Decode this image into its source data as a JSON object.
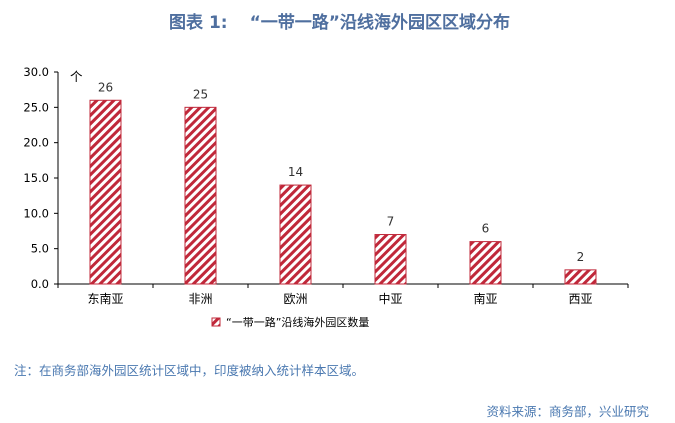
{
  "title": {
    "label": "图表 1:",
    "text": "“一带一路”沿线海外园区区域分布"
  },
  "note": "注：在商务部海外园区统计区域中，印度被纳入统计样本区域。",
  "source": "资料来源：商务部，兴业研究",
  "colors": {
    "bar_stripe": "#c0283a",
    "title": "#4f6f9f",
    "note": "#4a78b0"
  },
  "chart_data": {
    "type": "bar",
    "categories": [
      "东南亚",
      "非洲",
      "欧洲",
      "中亚",
      "南亚",
      "西亚"
    ],
    "series": [
      {
        "name": "“一带一路”沿线海外园区数量",
        "values": [
          26,
          25,
          14,
          7,
          6,
          2
        ]
      }
    ],
    "yunit": "个",
    "ylim": [
      0,
      30
    ],
    "yticks": [
      "0.0",
      "5.0",
      "10.0",
      "15.0",
      "20.0",
      "25.0",
      "30.0"
    ],
    "grid": false,
    "legend_position": "bottom-left"
  }
}
